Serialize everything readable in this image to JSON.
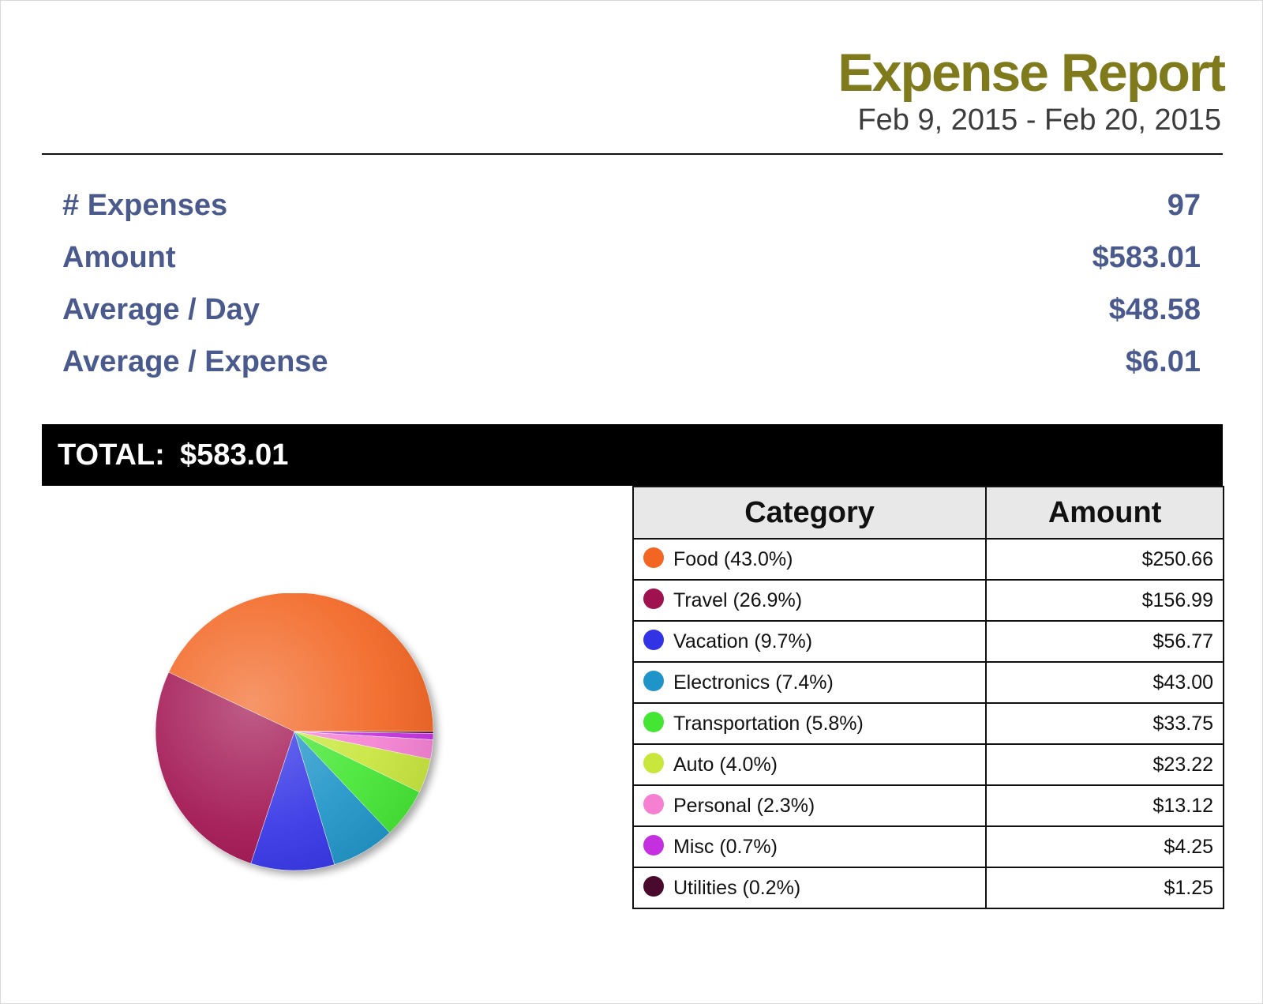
{
  "header": {
    "title": "Expense Report",
    "date_range": "Feb 9, 2015 - Feb 20, 2015",
    "title_color": "#7f7a1b",
    "stat_color": "#4a5a8c"
  },
  "stats": [
    {
      "label": "# Expenses",
      "value": "97"
    },
    {
      "label": "Amount",
      "value": "$583.01"
    },
    {
      "label": "Average / Day",
      "value": "$48.58"
    },
    {
      "label": "Average / Expense",
      "value": "$6.01"
    }
  ],
  "total": {
    "label": "TOTAL:",
    "value": "$583.01"
  },
  "table": {
    "header_category": "Category",
    "header_amount": "Amount"
  },
  "chart_data": {
    "type": "pie",
    "categories": [
      "Food",
      "Travel",
      "Vacation",
      "Electronics",
      "Transportation",
      "Auto",
      "Personal",
      "Misc",
      "Utilities"
    ],
    "percents": [
      43.0,
      26.9,
      9.7,
      7.4,
      5.8,
      4.0,
      2.3,
      0.7,
      0.2
    ],
    "values": [
      250.66,
      156.99,
      56.77,
      43.0,
      33.75,
      23.22,
      13.12,
      4.25,
      1.25
    ],
    "labels": [
      "Food (43.0%)",
      "Travel (26.9%)",
      "Vacation (9.7%)",
      "Electronics (7.4%)",
      "Transportation (5.8%)",
      "Auto (4.0%)",
      "Personal (2.3%)",
      "Misc (0.7%)",
      "Utilities (0.2%)"
    ],
    "amounts": [
      "$250.66",
      "$156.99",
      "$56.77",
      "$43.00",
      "$33.75",
      "$23.22",
      "$13.12",
      "$4.25",
      "$1.25"
    ],
    "colors": [
      "#f26522",
      "#a0114f",
      "#3333e6",
      "#1e94c8",
      "#44e633",
      "#c8e63c",
      "#f580d2",
      "#c430e0",
      "#4a0a2e"
    ],
    "start_angle_deg": 0,
    "direction": "counterclockwise"
  }
}
